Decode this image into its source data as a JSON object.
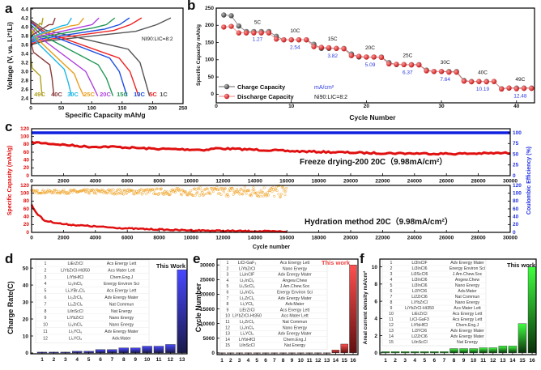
{
  "chart_data": [
    {
      "panel": "a",
      "type": "line",
      "xlabel": "Specific Capacity mAh/g",
      "ylabel": "Voltage (V, vs. Li⁺/Li)",
      "xlim": [
        0,
        250
      ],
      "ylim": [
        2.28,
        4.42
      ],
      "xticks": [
        "0",
        "50",
        "100",
        "150",
        "200",
        "250"
      ],
      "yticks": [
        "2.4",
        "2.6",
        "2.8",
        "3.0",
        "3.2",
        "3.4",
        "3.6",
        "3.8",
        "4.0",
        "4.2",
        "4.4"
      ],
      "annotation": "NI90:LIC=8:2",
      "series": [
        {
          "name": "1C",
          "color": "#555555",
          "discharge_capacity": 195,
          "charge_capacity": 230,
          "discharge_start_V": 4.15,
          "knee_V": 3.5,
          "charge_start_V": 3.6
        },
        {
          "name": "5C",
          "color": "#ee2222",
          "discharge_capacity": 177,
          "charge_capacity": 182,
          "discharge_start_V": 4.12,
          "knee_V": 3.3,
          "charge_start_V": 3.62
        },
        {
          "name": "10C",
          "color": "#1f4fe0",
          "discharge_capacity": 158,
          "charge_capacity": 162,
          "discharge_start_V": 4.1,
          "knee_V": 3.3,
          "charge_start_V": 3.65
        },
        {
          "name": "15C",
          "color": "#229955",
          "discharge_capacity": 135,
          "charge_capacity": 138,
          "discharge_start_V": 4.05,
          "knee_V": 3.15,
          "charge_start_V": 3.68
        },
        {
          "name": "20C",
          "color": "#b040e0",
          "discharge_capacity": 110,
          "charge_capacity": 112,
          "discharge_start_V": 4.0,
          "knee_V": 3.0,
          "charge_start_V": 3.7
        },
        {
          "name": "25C",
          "color": "#e8a020",
          "discharge_capacity": 87,
          "charge_capacity": 87,
          "discharge_start_V": 3.95,
          "knee_V": 2.95,
          "charge_start_V": 3.72
        },
        {
          "name": "30C",
          "color": "#20b8e8",
          "discharge_capacity": 67,
          "charge_capacity": 67,
          "discharge_start_V": 3.9,
          "knee_V": 3.05,
          "charge_start_V": 3.72
        },
        {
          "name": "40C",
          "color": "#8a3a3a",
          "discharge_capacity": 38,
          "charge_capacity": 40,
          "discharge_start_V": 3.65,
          "knee_V": 3.15,
          "charge_start_V": 3.75
        },
        {
          "name": "49C",
          "color": "#b0a020",
          "discharge_capacity": 19,
          "charge_capacity": 20,
          "discharge_start_V": 3.3,
          "knee_V": 2.9,
          "charge_start_V": 3.78
        }
      ]
    },
    {
      "panel": "b",
      "type": "scatter",
      "xlabel": "Cycle Number",
      "ylabel": "Specific Capacity mAh/g",
      "xlim": [
        0,
        42.4
      ],
      "ylim": [
        -25,
        250
      ],
      "xticks": [
        "0",
        "10",
        "20",
        "30",
        "40"
      ],
      "yticks": [
        "0",
        "50",
        "100",
        "150",
        "200",
        "250"
      ],
      "legend": {
        "charge": "Charge Capacity",
        "discharge": "Discharge Capacity",
        "unit": "mA/cm²",
        "ratio": "Ni90:LIC=8:2",
        "placement": "bottom-left"
      },
      "cycles": [
        1,
        2,
        3,
        4,
        5,
        6,
        7,
        8,
        9,
        10,
        11,
        12,
        13,
        14,
        15,
        16,
        17,
        18,
        19,
        20,
        21,
        22,
        23,
        24,
        25,
        26,
        27,
        28,
        29,
        30,
        31,
        32,
        33,
        34,
        35,
        36,
        37,
        38,
        39,
        40,
        41,
        42
      ],
      "series": [
        {
          "name": "Charge Capacity",
          "color": "#555555",
          "values": [
            230,
            228,
            198,
            182,
            182,
            182,
            182,
            168,
            158,
            158,
            158,
            158,
            145,
            133,
            133,
            133,
            133,
            117,
            108,
            108,
            108,
            108,
            92,
            86,
            86,
            86,
            86,
            70,
            66,
            66,
            66,
            66,
            40,
            37,
            37,
            37,
            37,
            16,
            18,
            18,
            18,
            18
          ]
        },
        {
          "name": "Discharge Capacity",
          "color": "#e82020",
          "values": [
            195,
            197,
            178,
            178,
            178,
            178,
            178,
            160,
            158,
            158,
            158,
            158,
            138,
            136,
            135,
            133,
            132,
            112,
            110,
            108,
            108,
            107,
            88,
            87,
            86,
            85,
            85,
            68,
            66,
            66,
            64,
            64,
            38,
            36,
            37,
            36,
            37,
            15,
            18,
            16,
            17,
            17
          ]
        }
      ],
      "rate_groups": [
        {
          "rate": "5C",
          "current": "1.27",
          "cycle": 5.5,
          "capacity": 182
        },
        {
          "rate": "10C",
          "current": "2.54",
          "cycle": 10.5,
          "capacity": 158
        },
        {
          "rate": "15C",
          "current": "3.82",
          "cycle": 15.5,
          "capacity": 134
        },
        {
          "rate": "20C",
          "current": "5.09",
          "cycle": 20.5,
          "capacity": 108
        },
        {
          "rate": "25C",
          "current": "6.37",
          "cycle": 25.5,
          "capacity": 86
        },
        {
          "rate": "30C",
          "current": "7.64",
          "cycle": 30.5,
          "capacity": 66
        },
        {
          "rate": "40C",
          "current": "10.19",
          "cycle": 35.5,
          "capacity": 37
        },
        {
          "rate": "49C",
          "current": "12.48",
          "cycle": 40.5,
          "capacity": 17
        }
      ]
    },
    {
      "panel": "c",
      "type": "line",
      "xlabel": "Cycle number",
      "ylabel_left": "Specific Capasity (mAh/g)",
      "ylabel_right": "Coulombic Efficiency (%)",
      "xlim": [
        0,
        30000
      ],
      "xticks": [
        "0",
        "2000",
        "4000",
        "6000",
        "8000",
        "10000",
        "12000",
        "14000",
        "16000",
        "18000",
        "20000",
        "22000",
        "24000",
        "26000",
        "28000",
        "30000"
      ],
      "top": {
        "title": "Freeze drying-200 20C（9.98mA/cm²）",
        "ylim_left": [
          0,
          120
        ],
        "ylim_right": [
          0,
          109.5
        ],
        "yticks_left": [
          "0",
          "20",
          "40",
          "60",
          "80",
          "100",
          "120"
        ],
        "yticks_right": [
          "0",
          "25",
          "50",
          "75",
          "100"
        ],
        "capacity": [
          [
            0,
            85
          ],
          [
            500,
            84
          ],
          [
            3500,
            74
          ],
          [
            5000,
            74
          ],
          [
            7500,
            69
          ],
          [
            11000,
            66
          ],
          [
            11500,
            70
          ],
          [
            15000,
            65
          ],
          [
            16000,
            63
          ],
          [
            21000,
            58
          ],
          [
            26500,
            56
          ],
          [
            30000,
            58
          ]
        ],
        "efficiency": 100,
        "capacity_color": "#e01010",
        "efficiency_color": "#1020e0"
      },
      "bottom": {
        "title": "Hydration method 20C（9.98mA/cm²）",
        "ylim_left": [
          0,
          120
        ],
        "ylim_right": [
          0,
          120
        ],
        "yticks_left": [
          "0",
          "20",
          "40",
          "60",
          "80",
          "100",
          "120"
        ],
        "yticks_right": [
          "0",
          "20",
          "40",
          "60",
          "80",
          "100",
          "120"
        ],
        "capacity": [
          [
            0,
            70
          ],
          [
            300,
            50
          ],
          [
            800,
            30
          ],
          [
            2000,
            21
          ],
          [
            4000,
            15
          ],
          [
            6000,
            10
          ],
          [
            9000,
            6
          ],
          [
            12000,
            4
          ],
          [
            16000,
            2
          ]
        ],
        "efficiency_mean": 104,
        "efficiency_spread": [
          [
            0,
            4
          ],
          [
            8000,
            8
          ],
          [
            16000,
            16
          ]
        ],
        "last_cycle": 16000,
        "capacity_color": "#e01010",
        "efficiency_color": "#f0a020"
      }
    },
    {
      "panel": "d",
      "type": "bar",
      "ylabel": "Charge Rate(C)",
      "ylim": [
        -0.5,
        55.3
      ],
      "yticks": [
        "0",
        "10",
        "20",
        "30",
        "40",
        "50"
      ],
      "categories": [
        "1",
        "2",
        "3",
        "4",
        "5",
        "6",
        "7",
        "8",
        "9",
        "10",
        "11",
        "12",
        "13"
      ],
      "values": [
        0.5,
        0.5,
        0.5,
        1,
        1,
        2,
        2,
        3,
        3,
        4,
        4,
        5,
        49
      ],
      "highlight_label": "This Work",
      "color": "#3a3af0",
      "table": [
        [
          "1",
          "LiErZrCl",
          "Acs Energy Lett"
        ],
        [
          "2",
          "LiYbZrCl-Ht350",
          "Acs Mater Lett"
        ],
        [
          "3",
          "LiYbHfCl",
          "Chem.Eng.J"
        ],
        [
          "4",
          "Li₃InCl₆",
          "Energy Environ Sci"
        ],
        [
          "5",
          "Li₃YBr₃Cl₃",
          "Acs Energy Lett"
        ],
        [
          "6",
          "Li₂ZrCl₆",
          "Adv Energy Mater"
        ],
        [
          "7",
          "Li₂ZrCl₆",
          "Nat Commun"
        ],
        [
          "8",
          "LiInScCl",
          "Nat Energy"
        ],
        [
          "9",
          "LiYbZrCl",
          "Nano Energy"
        ],
        [
          "10",
          "Li₃InCl₆",
          "Nano Energy"
        ],
        [
          "11",
          "Li₃YCl₆",
          "Adv Energy Mater"
        ],
        [
          "12",
          "Li₃YCl₆",
          "Adv.Mater"
        ]
      ]
    },
    {
      "panel": "e",
      "type": "bar",
      "ylabel": "Cycle Number",
      "ylim": [
        -600,
        32000
      ],
      "yticks": [
        "0",
        "5000",
        "10000",
        "15000",
        "20000",
        "25000",
        "30000"
      ],
      "categories": [
        "1",
        "2",
        "3",
        "4",
        "5",
        "6",
        "7",
        "8",
        "9",
        "10",
        "11",
        "12",
        "13",
        "14",
        "15",
        "16"
      ],
      "values": [
        0,
        0,
        0,
        0,
        0,
        0,
        0,
        0,
        0,
        0,
        0,
        0,
        0,
        1000,
        3000,
        30000
      ],
      "highlight_label": "This work",
      "color": "#f04040",
      "table": [
        [
          "1",
          "LiCl-GaF₃",
          "Acs Energy Lett"
        ],
        [
          "2",
          "LiYbZrCl",
          "Nano Energy"
        ],
        [
          "3",
          "Li₃InClF",
          "Adv Energy Mater"
        ],
        [
          "4",
          "Li₃InCl₆",
          "Angew.Chew"
        ],
        [
          "5",
          "Li₃ScCl₆",
          "J.Am.Chew.Soc"
        ],
        [
          "6",
          "Li₃InCl₆",
          "Energy Environ Sci"
        ],
        [
          "7",
          "Li₂ZrCl₆",
          "Adv Energy Mater"
        ],
        [
          "8",
          "Li₃YCl₆",
          "Adv.Mater"
        ],
        [
          "9",
          "LiErZrCl",
          "Acs Energy Lett"
        ],
        [
          "10",
          "LiYbZrCl-Ht350",
          "Acs Mater Lett"
        ],
        [
          "11",
          "Li₂ZrCl₆",
          "Nat Commun"
        ],
        [
          "12",
          "Li₃InCl₆",
          "Nano Energy"
        ],
        [
          "13",
          "Li₃YCl₆",
          "Adv Energy Mater"
        ],
        [
          "14",
          "LiYbHfCl",
          "Chem.Eng.J"
        ],
        [
          "15",
          "LiInScCl",
          "Nat Energy"
        ]
      ]
    },
    {
      "panel": "f",
      "type": "bar",
      "ylabel": "Areal current density mA/cm²",
      "ylim": [
        -0.2,
        10.9
      ],
      "yticks": [
        "0",
        "2",
        "4",
        "6",
        "8",
        "10"
      ],
      "categories": [
        "1",
        "2",
        "3",
        "4",
        "5",
        "6",
        "7",
        "8",
        "9",
        "10",
        "11",
        "12",
        "13",
        "14",
        "15",
        "16"
      ],
      "values": [
        0.15,
        0.15,
        0.15,
        0.15,
        0.15,
        0.15,
        0.15,
        0.5,
        0.5,
        0.5,
        0.6,
        0.6,
        0.8,
        0.8,
        3.4,
        10
      ],
      "highlight_label": "This work",
      "color": "#30e030",
      "table": [
        [
          "1",
          "Li3InClF",
          "Adv Energy Mater"
        ],
        [
          "2",
          "Li3InCl6",
          "Energy Environ Sci"
        ],
        [
          "3",
          "Li3ScCl6",
          "J.Am.Chew.Soc"
        ],
        [
          "4",
          "Li3InCl6",
          "Angew.Chew"
        ],
        [
          "5",
          "Li3InCl6",
          "Nano Energy"
        ],
        [
          "6",
          "Li3YCl6",
          "Adv.Mater"
        ],
        [
          "7",
          "Li2ZrCl6",
          "Nat Commun"
        ],
        [
          "8",
          "LiYbZrCl",
          "Nano Energy"
        ],
        [
          "9",
          "LiYbZrCl-Ht350",
          "Acs Mater Lett"
        ],
        [
          "10",
          "LiErZrCl",
          "Acs Energy Lett"
        ],
        [
          "11",
          "LiCl-GaF3",
          "Acs Energy Lett"
        ],
        [
          "12",
          "LiYbHfCl",
          "Chem.Eng.J"
        ],
        [
          "13",
          "Li3YCl6",
          "Adv Energy Mater"
        ],
        [
          "14",
          "Li2ZrCl6",
          "Adv Energy Mater"
        ],
        [
          "15",
          "LiInScCl",
          "Nat Energy"
        ]
      ]
    }
  ],
  "panel_labels": [
    "a",
    "b",
    "c",
    "d",
    "e",
    "f"
  ]
}
